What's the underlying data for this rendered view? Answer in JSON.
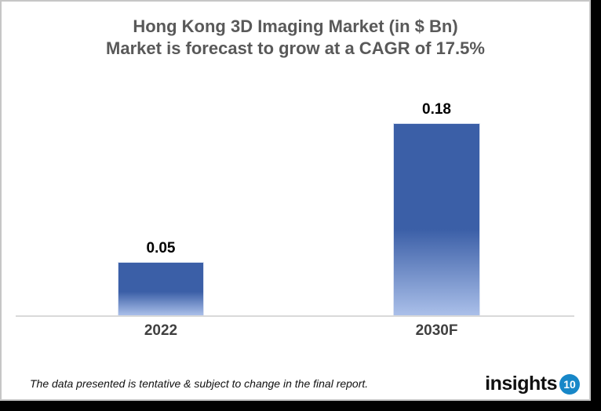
{
  "title": {
    "line1": "Hong Kong 3D Imaging Market (in $ Bn)",
    "line2": "Market is forecast to grow at a CAGR of 17.5%"
  },
  "chart_data": {
    "type": "bar",
    "categories": [
      "2022",
      "2030F"
    ],
    "values": [
      0.05,
      0.18
    ],
    "value_labels": [
      "0.05",
      "0.18"
    ],
    "title": "Hong Kong 3D Imaging Market (in $ Bn)",
    "subtitle": "Market is forecast to grow at a CAGR of 17.5%",
    "xlabel": "",
    "ylabel": "",
    "ylim": [
      0,
      0.2
    ],
    "grid": false,
    "legend": false,
    "bar_color_top": "#3b5fa7",
    "bar_color_bottom": "#aabfe9",
    "axis_line_color": "#d9d9d9",
    "title_color": "#595959",
    "value_label_color": "#000000",
    "category_label_color": "#404040"
  },
  "footer": {
    "disclaimer": "The data presented is tentative & subject to change in the final report.",
    "logo_text": "insights",
    "logo_badge": "10",
    "logo_badge_color": "#1787c8"
  }
}
